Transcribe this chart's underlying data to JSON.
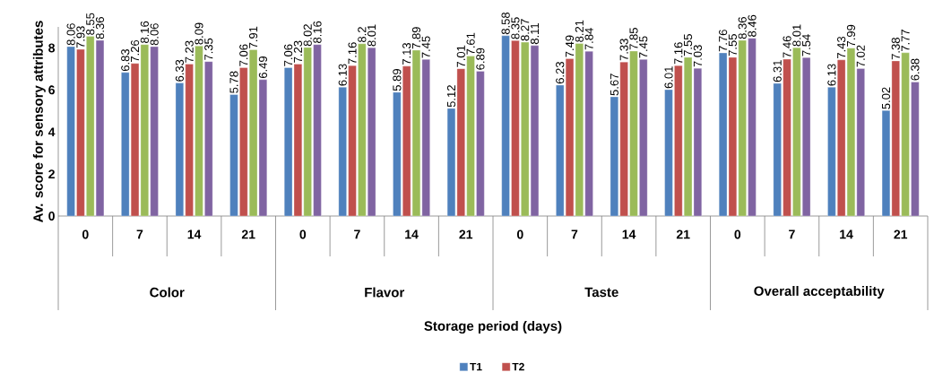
{
  "chart_data": {
    "type": "bar",
    "ylabel": "Av. score for sensory attributes",
    "categories": [
      "0",
      "7",
      "14",
      "21",
      "0",
      "7",
      "14",
      "21",
      "0",
      "7",
      "14",
      "21",
      "0",
      "7",
      "14",
      "21"
    ],
    "annotations": [
      "Color",
      "Flavor",
      "Taste",
      "Overall acceptability",
      "Storage period (days)"
    ],
    "series": [
      {
        "name": "T1",
        "color": "#4f81bd",
        "values": [
          8.06,
          6.83,
          6.33,
          5.78,
          7.06,
          6.13,
          5.89,
          5.12,
          8.58,
          6.23,
          5.67,
          6.01,
          7.76,
          6.31,
          6.13,
          5.02
        ]
      },
      {
        "name": "T2",
        "color": "#c0504d",
        "values": [
          7.93,
          7.26,
          7.23,
          7.06,
          7.23,
          7.16,
          7.13,
          7.01,
          8.35,
          7.49,
          7.33,
          7.16,
          7.55,
          7.46,
          7.43,
          7.38
        ]
      },
      {
        "color": "#9bbb59",
        "values": [
          8.55,
          8.16,
          8.09,
          7.91,
          8.02,
          8.2,
          7.89,
          7.61,
          8.27,
          8.21,
          7.85,
          7.55,
          8.36,
          8.01,
          7.99,
          7.77
        ]
      },
      {
        "color": "#8064a2",
        "values": [
          8.36,
          8.06,
          7.35,
          6.49,
          8.16,
          8.01,
          7.45,
          6.89,
          8.11,
          7.84,
          7.45,
          7.03,
          8.46,
          7.54,
          7.02,
          6.38
        ]
      }
    ],
    "ylim": [
      0,
      9
    ],
    "yticks": [
      0,
      2,
      4,
      6,
      8
    ],
    "data_labels": true,
    "legend": "bottom"
  }
}
